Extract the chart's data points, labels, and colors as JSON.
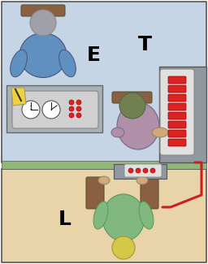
{
  "top_room_color": "#c5d5e5",
  "bottom_room_color": "#e8d4a8",
  "wall_color": "#90b878",
  "border_color": "#555555",
  "label_E": "E",
  "label_T": "T",
  "label_L": "L",
  "label_fontsize": 18,
  "figure_bg": "#ffffff",
  "skin_color": "#d4a878",
  "skin_dark": "#c49060",
  "e_shirt": "#6090c0",
  "e_hair": "#a0a0a8",
  "t_shirt": "#b090a8",
  "t_hair": "#708050",
  "l_shirt": "#80b880",
  "l_hair": "#d4c848",
  "chair_color": "#8B6040",
  "desk_color": "#a8b0b8",
  "panel_color": "#d0d0d0",
  "gen_color": "#9098a0",
  "gen_panel_color": "#e0e0e0",
  "red_button": "#dd2222",
  "wire_color": "#cc2020",
  "notepad_color": "#f0d040"
}
